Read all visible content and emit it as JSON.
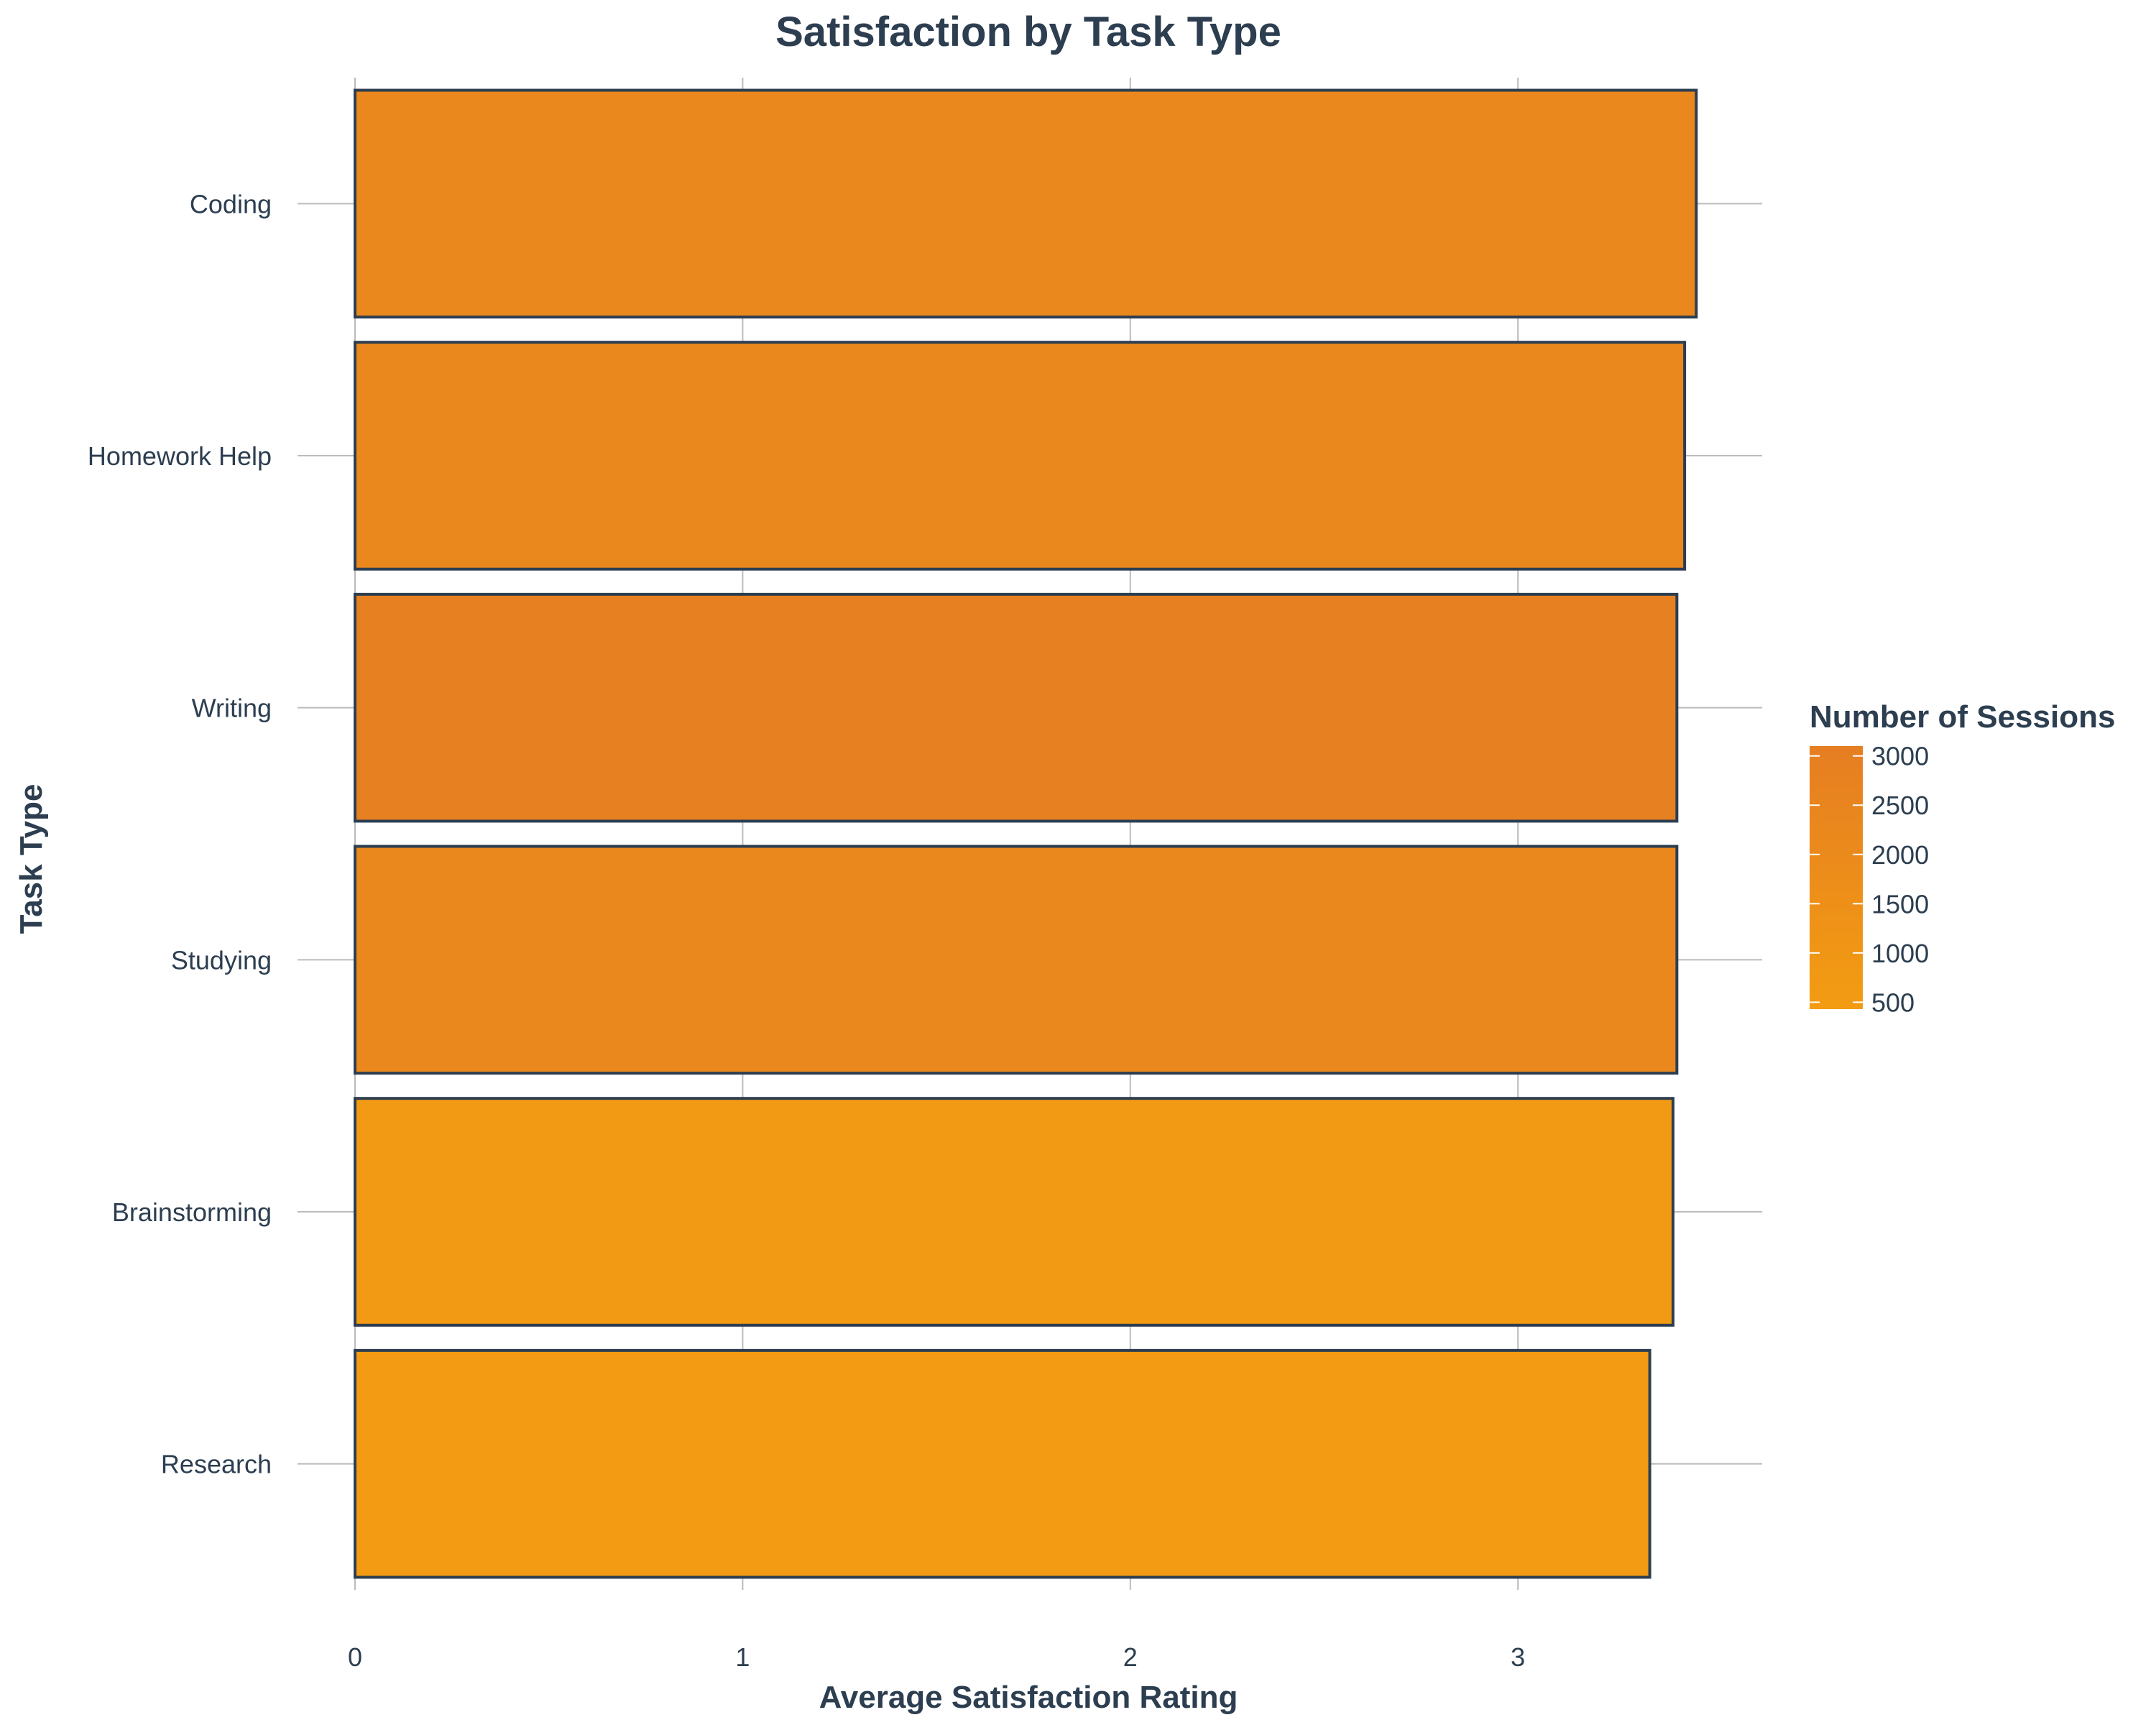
{
  "chart_data": {
    "type": "bar",
    "orientation": "horizontal",
    "title": "Satisfaction by Task Type",
    "xlabel": "Average Satisfaction Rating",
    "ylabel": "Task Type",
    "categories": [
      "Coding",
      "Homework Help",
      "Writing",
      "Studying",
      "Brainstorming",
      "Research"
    ],
    "values": [
      3.46,
      3.43,
      3.41,
      3.41,
      3.4,
      3.34
    ],
    "sessions": [
      2300,
      2200,
      2900,
      2200,
      600,
      500
    ],
    "x_ticks": [
      0,
      1,
      2,
      3
    ],
    "xlim": [
      0,
      3.63
    ],
    "grid": true,
    "legend": {
      "title": "Number of Sessions",
      "position": "right",
      "ticks": [
        3000,
        2500,
        2000,
        1500,
        1000,
        500
      ],
      "range": [
        430,
        3100
      ]
    },
    "colors": {
      "low": "#f39c12",
      "high": "#e67e22",
      "bar_outline": "#2c3e50",
      "text": "#2c3e50",
      "grid": "#bbbbbb"
    }
  }
}
